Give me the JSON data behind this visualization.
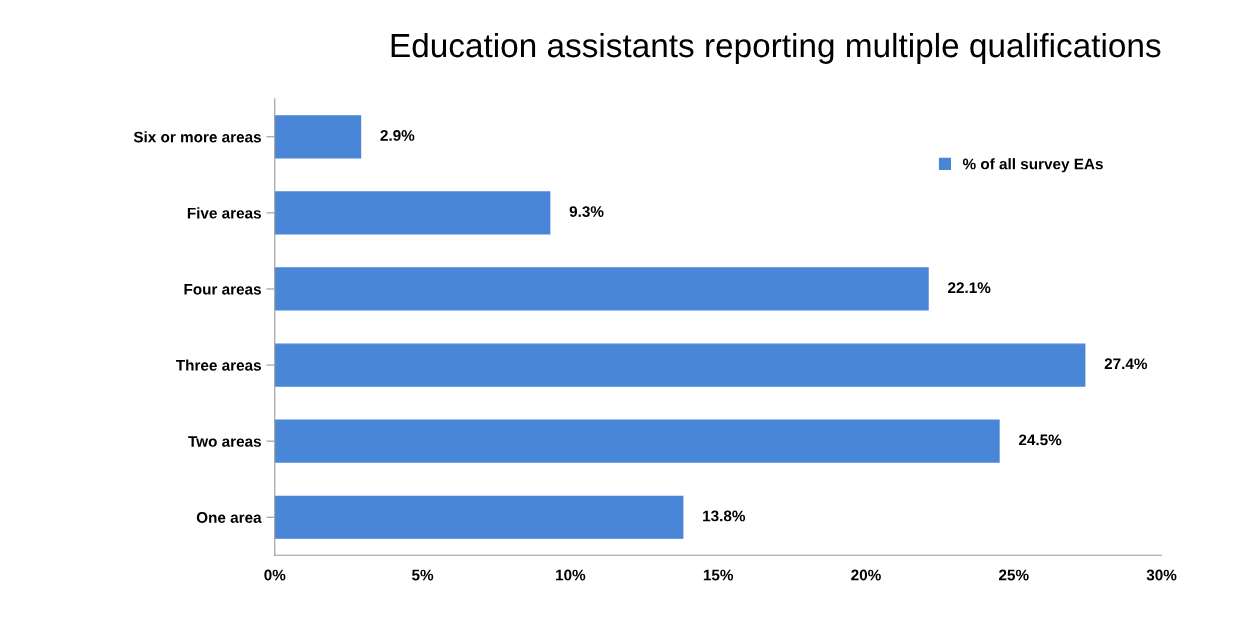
{
  "chart_data": {
    "type": "bar",
    "orientation": "horizontal",
    "title": "Education assistants reporting multiple qualifications",
    "categories": [
      "Six or more areas",
      "Five areas",
      "Four areas",
      "Three areas",
      "Two areas",
      "One area"
    ],
    "series": [
      {
        "name": "% of all survey EAs",
        "color": "#4a86d8",
        "values": [
          2.9,
          9.3,
          22.1,
          27.4,
          24.5,
          13.8
        ],
        "value_labels": [
          "2.9%",
          "9.3%",
          "22.1%",
          "27.4%",
          "24.5%",
          "13.8%"
        ]
      }
    ],
    "xlim": [
      0,
      30
    ],
    "xticks": [
      {
        "value": 0,
        "label": "0%"
      },
      {
        "value": 5,
        "label": "5%"
      },
      {
        "value": 10,
        "label": "10%"
      },
      {
        "value": 15,
        "label": "15%"
      },
      {
        "value": 20,
        "label": "20%"
      },
      {
        "value": 25,
        "label": "25%"
      },
      {
        "value": 30,
        "label": "30%"
      }
    ],
    "grid": false,
    "legend": "top right"
  }
}
